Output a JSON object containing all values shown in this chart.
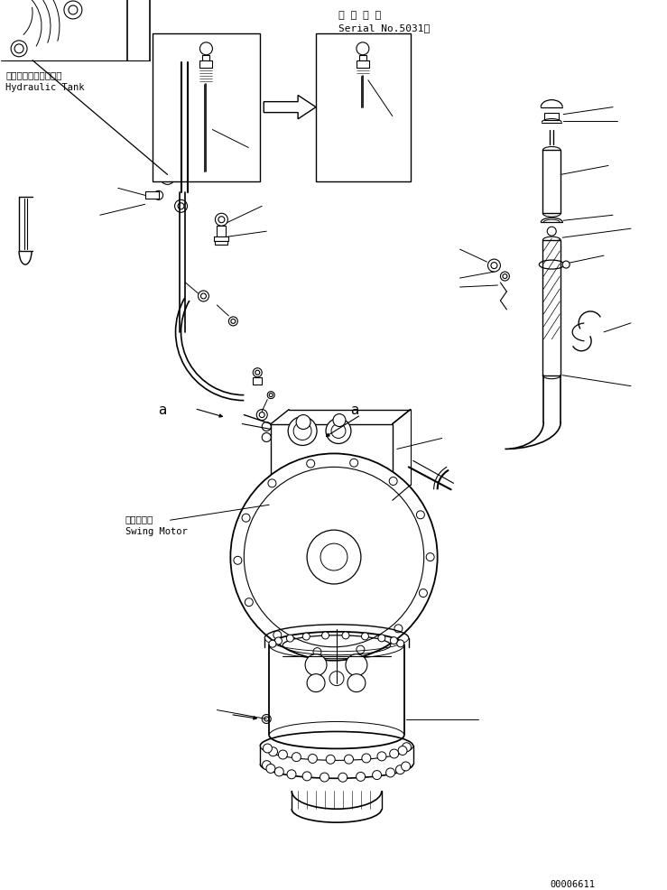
{
  "bg_color": "#ffffff",
  "line_color": "#000000",
  "fig_width": 7.39,
  "fig_height": 9.87,
  "dpi": 100,
  "serial_text1": "適 用 号 機",
  "serial_text2": "Serial No.5031～",
  "label_hydraulic_jp": "ハイドロリックタンク",
  "label_hydraulic_en": "Hydraulic Tank",
  "label_swing_jp": "旋回モータ",
  "label_swing_en": "Swing Motor",
  "doc_number": "00006611",
  "label_a1": "a",
  "label_a2": "a"
}
